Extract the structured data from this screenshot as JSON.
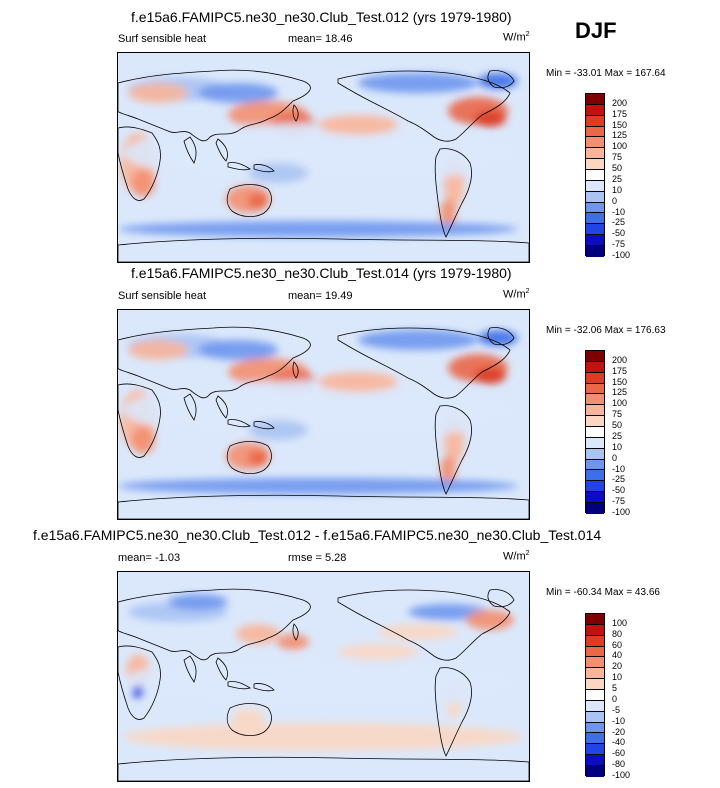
{
  "season": "DJF",
  "colors": {
    "land_outline": "#000000",
    "ocean_base": "#dbe8fb",
    "scale12": [
      "#00007f",
      "#0c0cc7",
      "#2244e6",
      "#3f6fe8",
      "#6f96ee",
      "#a9c3f3",
      "#dbe8fb",
      "#ffffff",
      "#fbd7c3",
      "#f9b59a",
      "#f38f70",
      "#ea6748",
      "#dc3c22",
      "#c0130f",
      "#7e0000"
    ],
    "scale3": [
      "#00007f",
      "#0c0cc7",
      "#2244e6",
      "#3f6fe8",
      "#6f96ee",
      "#a9c3f3",
      "#dbe8fb",
      "#ffffff",
      "#fbd7c3",
      "#f9b59a",
      "#f38f70",
      "#ea6748",
      "#dc3c22",
      "#c0130f",
      "#7e0000"
    ]
  },
  "panels": [
    {
      "title": "f.e15a6.FAMIPC5.ne30_ne30.Club_Test.012 (yrs 1979-1980)",
      "left_label": "Surf sensible heat",
      "center_label": "mean=  18.46",
      "units": "W/m",
      "units_sup": "2",
      "minmax": "Min = -33.01 Max = 167.64",
      "colorbar_ticks": [
        "200",
        "175",
        "150",
        "125",
        "100",
        "75",
        "50",
        "25",
        "10",
        "0",
        "-10",
        "-25",
        "-50",
        "-75",
        "-100"
      ]
    },
    {
      "title": "f.e15a6.FAMIPC5.ne30_ne30.Club_Test.014 (yrs 1979-1980)",
      "left_label": "Surf sensible heat",
      "center_label": "mean=  19.49",
      "units": "W/m",
      "units_sup": "2",
      "minmax": "Min = -32.06 Max = 176.63",
      "colorbar_ticks": [
        "200",
        "175",
        "150",
        "125",
        "100",
        "75",
        "50",
        "25",
        "10",
        "0",
        "-10",
        "-25",
        "-50",
        "-75",
        "-100"
      ]
    },
    {
      "title": "f.e15a6.FAMIPC5.ne30_ne30.Club_Test.012 - f.e15a6.FAMIPC5.ne30_ne30.Club_Test.014",
      "left_label": "mean=  -1.03",
      "center_label": "rmse =  5.28",
      "units": "W/m",
      "units_sup": "2",
      "minmax": "Min = -60.34 Max = 43.66",
      "colorbar_ticks": [
        "100",
        "80",
        "60",
        "40",
        "20",
        "10",
        "5",
        "0",
        "-5",
        "-10",
        "-20",
        "-40",
        "-60",
        "-80",
        "-100"
      ]
    }
  ],
  "chart_data": [
    {
      "type": "heatmap",
      "title": "f.e15a6.FAMIPC5.ne30_ne30.Club_Test.012 (yrs 1979-1980)",
      "field": "Surf sensible heat",
      "units": "W/m^2",
      "season": "DJF",
      "mean": 18.46,
      "min": -33.01,
      "max": 167.64,
      "contour_levels": [
        -100,
        -75,
        -50,
        -25,
        -10,
        0,
        10,
        25,
        50,
        75,
        100,
        125,
        150,
        175,
        200
      ]
    },
    {
      "type": "heatmap",
      "title": "f.e15a6.FAMIPC5.ne30_ne30.Club_Test.014 (yrs 1979-1980)",
      "field": "Surf sensible heat",
      "units": "W/m^2",
      "season": "DJF",
      "mean": 19.49,
      "min": -32.06,
      "max": 176.63,
      "contour_levels": [
        -100,
        -75,
        -50,
        -25,
        -10,
        0,
        10,
        25,
        50,
        75,
        100,
        125,
        150,
        175,
        200
      ]
    },
    {
      "type": "heatmap",
      "title": "f.e15a6.FAMIPC5.ne30_ne30.Club_Test.012 - f.e15a6.FAMIPC5.ne30_ne30.Club_Test.014",
      "units": "W/m^2",
      "season": "DJF",
      "mean": -1.03,
      "rmse": 5.28,
      "min": -60.34,
      "max": 43.66,
      "contour_levels": [
        -100,
        -80,
        -60,
        -40,
        -20,
        -10,
        -5,
        0,
        5,
        10,
        20,
        40,
        60,
        80,
        100
      ]
    }
  ]
}
